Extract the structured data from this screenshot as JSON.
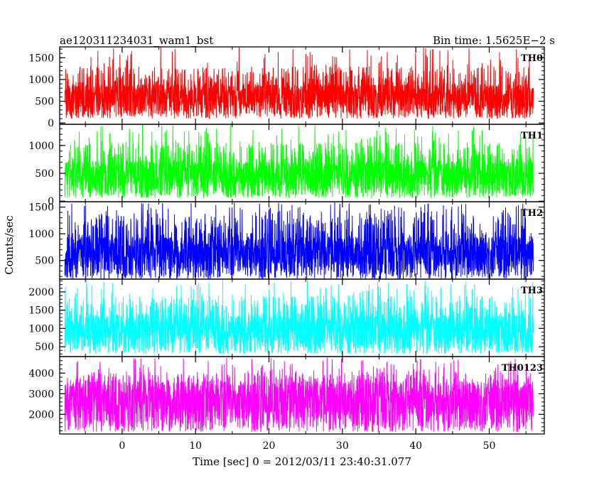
{
  "header": {
    "left": "ae120311234031_wam1_bst",
    "right": "Bin time: 1.5625E−2 s"
  },
  "chart_data": {
    "type": "line",
    "xlabel": "Time [sec] 0 = 2012/03/11 23:40:31.077",
    "ylabel": "Counts/sec",
    "xlim": [
      -8.5,
      57.5
    ],
    "x_range": [
      -7.8,
      56.0
    ],
    "x_ticks": [
      0,
      10,
      20,
      30,
      40,
      50
    ],
    "x_tick_labels": [
      "0",
      "10",
      "20",
      "30",
      "40",
      "50"
    ],
    "panels": [
      {
        "name": "TH0",
        "color": "#ff0000",
        "ylim": [
          -30,
          1750
        ],
        "ticks": [
          0,
          500,
          1000,
          1500
        ],
        "tick_labels": [
          "0",
          "500",
          "1000",
          "1500"
        ],
        "median": 650,
        "low": 100,
        "upper_envelope": 1300,
        "peak": 1750
      },
      {
        "name": "TH1",
        "color": "#00ff00",
        "ylim": [
          -10,
          1380
        ],
        "ticks": [
          0,
          500,
          1000
        ],
        "tick_labels": [
          "0",
          "500",
          "1000"
        ],
        "median": 520,
        "low": 60,
        "upper_envelope": 1050,
        "peak": 1380
      },
      {
        "name": "TH2",
        "color": "#0000ff",
        "ylim": [
          150,
          1600
        ],
        "ticks": [
          500,
          1000,
          1500
        ],
        "tick_labels": [
          "500",
          "1000",
          "1500"
        ],
        "median": 700,
        "low": 150,
        "upper_envelope": 1400,
        "peak": 1600
      },
      {
        "name": "TH3",
        "color": "#00ffff",
        "ylim": [
          230,
          2350
        ],
        "ticks": [
          500,
          1000,
          1500,
          2000
        ],
        "tick_labels": [
          "500",
          "1000",
          "1500",
          "2000"
        ],
        "median": 1050,
        "low": 300,
        "upper_envelope": 1900,
        "peak": 2350
      },
      {
        "name": "TH0123",
        "color": "#ff00ff",
        "ylim": [
          1050,
          4800
        ],
        "ticks": [
          2000,
          3000,
          4000
        ],
        "tick_labels": [
          "2000",
          "3000",
          "4000"
        ],
        "median": 2850,
        "low": 1150,
        "upper_envelope": 4100,
        "peak": 4800
      }
    ]
  }
}
